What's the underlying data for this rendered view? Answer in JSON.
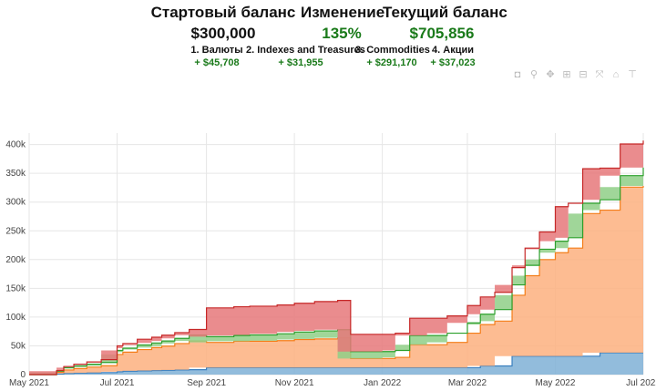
{
  "header": {
    "stats": [
      {
        "label": "Стартовый баланс",
        "value": "$300,000",
        "color": "#111111"
      },
      {
        "label": "Изменение",
        "value": "135%",
        "color": "#1a7a1a"
      },
      {
        "label": "Текущий баланс",
        "value": "$705,856",
        "color": "#1a7a1a"
      }
    ],
    "categories": [
      {
        "name": "1. Валюты",
        "value": "+ $45,708"
      },
      {
        "name": "2. Indexes and Treasures",
        "value": "+ $31,955"
      },
      {
        "name": "3. Commodities",
        "value": "+ $291,170"
      },
      {
        "name": "4. Акции",
        "value": "+ $37,023"
      }
    ]
  },
  "toolbar": [
    "camera-icon",
    "zoom-icon",
    "pan-icon",
    "zoom-in-icon",
    "zoom-out-icon",
    "autoscale-icon",
    "home-icon",
    "spike-lines-icon"
  ],
  "chart_data": {
    "type": "area",
    "stacked": true,
    "xlabel": "",
    "ylabel": "",
    "ylim": [
      0,
      420000
    ],
    "yticks": [
      0,
      50000,
      100000,
      150000,
      200000,
      250000,
      300000,
      350000,
      400000
    ],
    "ytick_labels": [
      "0",
      "50k",
      "100k",
      "150k",
      "200k",
      "250k",
      "300k",
      "350k",
      "400k"
    ],
    "xlim": [
      "2021-05-01",
      "2022-07-01"
    ],
    "xticks": [
      "2021-05-01",
      "2021-07-01",
      "2021-09-01",
      "2021-11-01",
      "2022-01-01",
      "2022-03-01",
      "2022-05-01",
      "2022-07-01"
    ],
    "xtick_labels": [
      "May 2021",
      "Jul 2021",
      "Sep 2021",
      "Nov 2021",
      "Jan 2022",
      "Mar 2022",
      "May 2022",
      "Jul 2022"
    ],
    "grid": true,
    "x": [
      "2021-05-01",
      "2021-05-20",
      "2021-05-25",
      "2021-06-01",
      "2021-06-10",
      "2021-06-20",
      "2021-07-01",
      "2021-07-05",
      "2021-07-15",
      "2021-07-25",
      "2021-08-01",
      "2021-08-10",
      "2021-08-20",
      "2021-09-01",
      "2021-09-20",
      "2021-10-01",
      "2021-10-20",
      "2021-11-01",
      "2021-11-15",
      "2021-12-01",
      "2021-12-10",
      "2022-01-01",
      "2022-01-10",
      "2022-01-20",
      "2022-02-01",
      "2022-02-15",
      "2022-03-01",
      "2022-03-10",
      "2022-03-20",
      "2022-04-01",
      "2022-04-10",
      "2022-04-20",
      "2022-05-01",
      "2022-05-10",
      "2022-05-20",
      "2022-06-01",
      "2022-06-15",
      "2022-07-01"
    ],
    "series": [
      {
        "color": "#7fb0d6",
        "values": [
          0,
          1000,
          2000,
          2500,
          3000,
          3500,
          5000,
          6000,
          6500,
          7000,
          7500,
          8000,
          8500,
          12000,
          12000,
          12000,
          12000,
          12000,
          12000,
          12000,
          12000,
          12000,
          12000,
          12000,
          12000,
          12000,
          12000,
          15000,
          15000,
          32000,
          32000,
          32000,
          32000,
          32000,
          32000,
          38000,
          38000,
          38000
        ]
      },
      {
        "color": "#fdb07f",
        "values": [
          0,
          3000,
          6000,
          8000,
          10000,
          12000,
          30000,
          33000,
          37000,
          40000,
          42000,
          46000,
          50000,
          44000,
          46000,
          46000,
          47000,
          49000,
          50000,
          52000,
          16000,
          16000,
          18000,
          40000,
          40000,
          44000,
          60000,
          72000,
          78000,
          106000,
          140000,
          168000,
          180000,
          188000,
          248000,
          248000,
          288000,
          290000
        ]
      },
      {
        "color": "#8fcf87",
        "values": [
          0,
          2000,
          4000,
          4500,
          5000,
          5500,
          7000,
          7000,
          8000,
          8000,
          9000,
          9000,
          10000,
          10000,
          10000,
          11000,
          12000,
          13000,
          14000,
          14000,
          12000,
          12000,
          12000,
          16000,
          16000,
          16000,
          18000,
          18000,
          20000,
          18000,
          18000,
          18000,
          20000,
          18000,
          18000,
          18000,
          20000,
          32000
        ]
      },
      {
        "color": "#e6787a",
        "values": [
          0,
          1000,
          2000,
          3000,
          4000,
          5000,
          8000,
          8000,
          10000,
          10000,
          10000,
          10000,
          10000,
          50000,
          50000,
          50000,
          50000,
          50000,
          51000,
          51000,
          30000,
          30000,
          30000,
          30000,
          30000,
          30000,
          30000,
          30000,
          30000,
          30000,
          30000,
          30000,
          60000,
          60000,
          60000,
          55000,
          55000,
          47000
        ]
      }
    ]
  }
}
